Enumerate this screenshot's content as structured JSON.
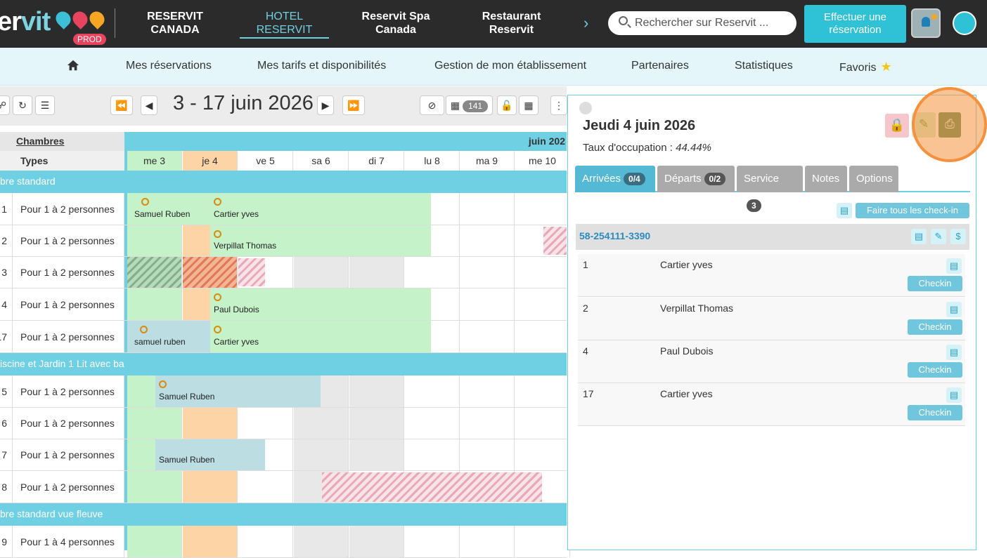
{
  "header": {
    "logo_text": "ervit",
    "env_badge": "PROD",
    "tabs": [
      {
        "label": "RESERVIT CANADA"
      },
      {
        "label": "HOTEL RESERVIT"
      },
      {
        "label": "Reservit Spa Canada"
      },
      {
        "label": "Restaurant Reservit"
      }
    ],
    "search_placeholder": "Rechercher sur Reservit ...",
    "book_button": "Effectuer une réservation"
  },
  "nav": {
    "items": [
      "Mes réservations",
      "Mes tarifs et disponibilités",
      "Gestion de mon établissement",
      "Partenaires",
      "Statistiques",
      "Favoris"
    ]
  },
  "toolbar": {
    "date_range": "3 - 17 juin 2026",
    "count_badge": "141"
  },
  "grid": {
    "col_rooms": "Chambres",
    "col_types": "Types",
    "month_label": "juin 202",
    "days": [
      "me 3",
      "je 4",
      "ve 5",
      "sa 6",
      "di 7",
      "lu 8",
      "ma 9",
      "me 10"
    ],
    "categories": [
      "bre standard",
      "iscine et Jardin 1 Lit avec bal",
      "bre standard vue fleuve"
    ],
    "rooms": [
      {
        "num": "1",
        "type": "Pour 1 à 2 personnes"
      },
      {
        "num": "2",
        "type": "Pour 1 à 2 personnes"
      },
      {
        "num": "3",
        "type": "Pour 1 à 2 personnes"
      },
      {
        "num": "4",
        "type": "Pour 1 à 2 personnes"
      },
      {
        "num": "17",
        "type": "Pour 1 à 2 personnes"
      },
      {
        "num": "5",
        "type": "Pour 1 à 2 personnes"
      },
      {
        "num": "6",
        "type": "Pour 1 à 2 personnes"
      },
      {
        "num": "7",
        "type": "Pour 1 à 2 personnes"
      },
      {
        "num": "8",
        "type": "Pour 1 à 2 personnes"
      },
      {
        "num": "9",
        "type": "Pour 1 à 4 personnes"
      }
    ],
    "bookings": [
      "Samuel Ruben",
      "Cartier yves",
      "Verpillat Thomas",
      "Paul Dubois",
      "samuel ruben",
      "Cartier yves",
      "Samuel Ruben",
      "Samuel Ruben"
    ]
  },
  "panel": {
    "title": "Jeudi 4 juin 2026",
    "occupancy_label": "Taux d'occupation :",
    "occupancy_value": "44.44%",
    "tabs": [
      {
        "label": "Arrivées",
        "count": "0/4"
      },
      {
        "label": "Départs",
        "count": "0/2"
      },
      {
        "label": "Service",
        "count": "3"
      },
      {
        "label": "Notes"
      },
      {
        "label": "Options"
      }
    ],
    "checkin_all": "Faire tous les check-in",
    "reservation_id": "58-254111-3390",
    "arrivals": [
      {
        "room": "1",
        "name": "Cartier yves"
      },
      {
        "room": "2",
        "name": "Verpillat Thomas"
      },
      {
        "room": "4",
        "name": "Paul Dubois"
      },
      {
        "room": "17",
        "name": "Cartier yves"
      }
    ],
    "checkin_label": "Checkin"
  }
}
